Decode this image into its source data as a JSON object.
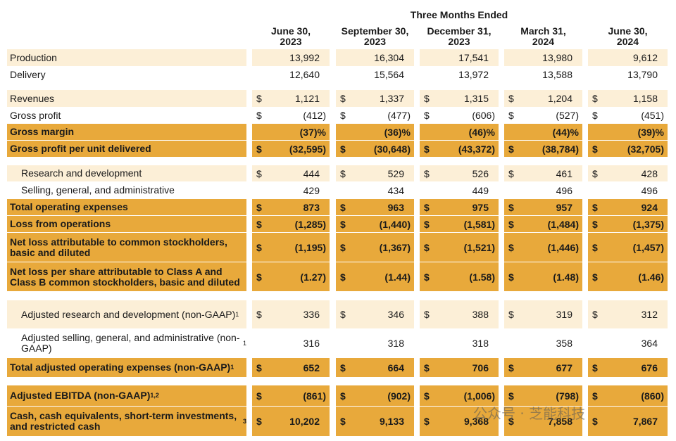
{
  "table": {
    "group_header": "Three Months Ended",
    "columns": [
      [
        "June 30,",
        "2023"
      ],
      [
        "September 30,",
        "2023"
      ],
      [
        "December 31,",
        "2023"
      ],
      [
        "March 31,",
        "2024"
      ],
      [
        "June 30,",
        "2024"
      ]
    ],
    "shading": {
      "dark": "#e8a93b",
      "light": "#fcefd7"
    },
    "rows": [
      {
        "label": "Production",
        "style": "light",
        "values": [
          "13,992",
          "16,304",
          "17,541",
          "13,980",
          "9,612"
        ]
      },
      {
        "label": "Delivery",
        "style": "plain",
        "values": [
          "12,640",
          "15,564",
          "13,972",
          "13,588",
          "13,790"
        ]
      },
      {
        "label": "Revenues",
        "style": "light",
        "currency": "$",
        "values": [
          "1,121",
          "1,337",
          "1,315",
          "1,204",
          "1,158"
        ]
      },
      {
        "label": "Gross profit",
        "style": "plain",
        "currency": "$",
        "values": [
          "(412)",
          "(477)",
          "(606)",
          "(527)",
          "(451)"
        ]
      },
      {
        "label": "Gross margin",
        "style": "dark",
        "values": [
          "(37)%",
          "(36)%",
          "(46)%",
          "(44)%",
          "(39)%"
        ]
      },
      {
        "label": "Gross profit per unit delivered",
        "style": "dark",
        "currency": "$",
        "values": [
          "(32,595)",
          "(30,648)",
          "(43,372)",
          "(38,784)",
          "(32,705)"
        ]
      },
      {
        "label": "Research and development",
        "style": "light",
        "indent": true,
        "currency": "$",
        "values": [
          "444",
          "529",
          "526",
          "461",
          "428"
        ]
      },
      {
        "label": "Selling, general, and administrative",
        "style": "plain",
        "indent": true,
        "values": [
          "429",
          "434",
          "449",
          "496",
          "496"
        ]
      },
      {
        "label": "Total operating expenses",
        "style": "dark",
        "currency": "$",
        "values": [
          "873",
          "963",
          "975",
          "957",
          "924"
        ]
      },
      {
        "label": "Loss from operations",
        "style": "dark",
        "currency": "$",
        "values": [
          "(1,285)",
          "(1,440)",
          "(1,581)",
          "(1,484)",
          "(1,375)"
        ]
      },
      {
        "label": "Net loss attributable to common stockholders, basic and diluted",
        "style": "dark",
        "currency": "$",
        "values": [
          "(1,195)",
          "(1,367)",
          "(1,521)",
          "(1,446)",
          "(1,457)"
        ]
      },
      {
        "label": "Net loss per share attributable to Class A and Class B common stockholders, basic and diluted",
        "style": "dark",
        "currency": "$",
        "values": [
          "(1.27)",
          "(1.44)",
          "(1.58)",
          "(1.48)",
          "(1.46)"
        ]
      },
      {
        "label": "Adjusted research and development (non-GAAP)",
        "note": "1",
        "style": "light",
        "indent": true,
        "currency": "$",
        "values": [
          "336",
          "346",
          "388",
          "319",
          "312"
        ]
      },
      {
        "label": "Adjusted selling, general, and administrative (non-GAAP)",
        "note": "1",
        "style": "plain",
        "indent": true,
        "values": [
          "316",
          "318",
          "318",
          "358",
          "364"
        ]
      },
      {
        "label": "Total adjusted operating expenses (non-GAAP)",
        "note": "1",
        "style": "dark",
        "currency": "$",
        "values": [
          "652",
          "664",
          "706",
          "677",
          "676"
        ]
      },
      {
        "label": "Adjusted EBITDA (non-GAAP)",
        "note": "1,2",
        "style": "dark",
        "currency": "$",
        "values": [
          "(861)",
          "(902)",
          "(1,006)",
          "(798)",
          "(860)"
        ]
      },
      {
        "label": "Cash, cash equivalents, short-term investments, and restricted cash",
        "note": "3",
        "style": "dark",
        "currency": "$",
        "values": [
          "10,202",
          "9,133",
          "9,368",
          "7,858",
          "7,867"
        ]
      }
    ]
  },
  "watermark": "公众号 · 芝能科技"
}
